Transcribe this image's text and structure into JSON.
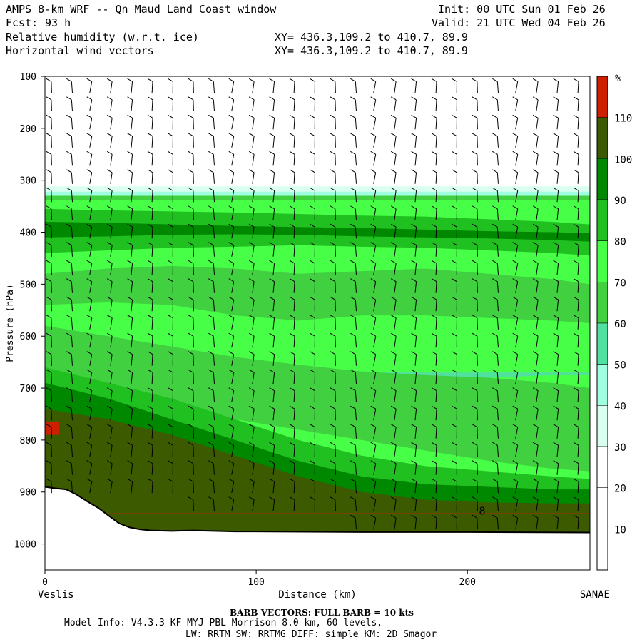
{
  "header": {
    "title": "AMPS 8-km WRF -- Qn Maud Land Coast window",
    "fcst_label": "Fcst:",
    "fcst_value": "93 h",
    "init": "Init: 00 UTC Sun 01 Feb 26",
    "valid": "Valid: 21 UTC Wed 04 Feb 26",
    "field1": "Relative humidity (w.r.t. ice)",
    "field2": "Horizontal wind vectors",
    "xy1": "XY= 436.3,109.2 to 410.7, 89.9",
    "xy2": "XY= 436.3,109.2 to 410.7, 89.9"
  },
  "footer": {
    "barb_note": "BARB VECTORS: FULL BARB = 10 kts",
    "model_info": "Model Info: V4.3.3 KF MYJ PBL Morrison 8.0 km, 60 levels,",
    "model_info2": "LW: RRTM SW: RRTMG DIFF: simple KM: 2D Smagor"
  },
  "chart_data": {
    "type": "heatmap",
    "title": "Relative humidity (w.r.t. ice)",
    "xlabel": "Distance (km)",
    "ylabel": "Pressure (hPa)",
    "x_left_label": "Veslis",
    "x_right_label": "SANAE",
    "xlim": [
      0,
      258
    ],
    "ylim": [
      1050,
      100
    ],
    "x_ticks": [
      0,
      100,
      200
    ],
    "x_tick_labels": [
      "0",
      "100",
      "200"
    ],
    "y_ticks": [
      100,
      200,
      300,
      400,
      500,
      600,
      700,
      800,
      900,
      1000
    ],
    "y_tick_labels": [
      "100",
      "200",
      "300",
      "400",
      "500",
      "600",
      "700",
      "800",
      "900",
      "1000"
    ],
    "colorbar": {
      "unit": "%",
      "levels": [
        10,
        20,
        30,
        40,
        50,
        60,
        70,
        80,
        90,
        100,
        110
      ],
      "labels": [
        "10",
        "20",
        "30",
        "40",
        "50",
        "60",
        "70",
        "80",
        "90",
        "100",
        "110"
      ],
      "colors": [
        "#ffffff",
        "#ffffff",
        "#ffffff",
        "#d8fff0",
        "#a0ffe0",
        "#50e0a0",
        "#40d040",
        "#48ff48",
        "#20c020",
        "#008800",
        "#3c5a00",
        "#cc2000"
      ]
    },
    "terrain_pressure_x": [
      0,
      5,
      10,
      15,
      20,
      25,
      30,
      35,
      40,
      45,
      50,
      60,
      70,
      80,
      90,
      100,
      150,
      200,
      258
    ],
    "terrain_pressure_p": [
      890,
      893,
      895,
      905,
      918,
      930,
      945,
      960,
      968,
      972,
      974,
      975,
      974,
      975,
      976,
      976,
      977,
      977,
      978
    ],
    "rh_bands": [
      {
        "value_range": [
          30,
          40
        ],
        "pressure_top_left": 318,
        "pressure_top_right": 318
      },
      {
        "value_range": [
          70,
          80
        ],
        "pressure_top_left": 340,
        "pressure_top_right": 340
      },
      {
        "value_range": [
          80,
          90
        ],
        "pressure_top_left": 360,
        "pressure_top_right": 380
      },
      {
        "value_range": [
          90,
          100
        ],
        "pressure_top_left": 380,
        "pressure_top_right": 395
      },
      {
        "value_range": [
          50,
          60
        ],
        "pressure_top_left": 640,
        "pressure_top_right": 660
      },
      {
        "value_range": [
          100,
          110
        ],
        "pressure_top_left": 750,
        "pressure_top_right": 920
      },
      {
        "value_range": [
          110,
          120
        ],
        "pressure_top_left": 770,
        "pressure_top_right": 940
      }
    ],
    "barb_note": "FULL BARB = 10 kts",
    "marker_label": "8",
    "marker_x": 207,
    "marker_p": 937
  }
}
